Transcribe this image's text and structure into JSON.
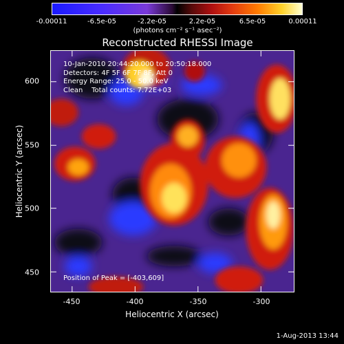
{
  "colorbar": {
    "ticks": [
      "-0.00011",
      "-6.5e-05",
      "-2.2e-05",
      "2.2e-05",
      "6.5e-05",
      "0.00011"
    ],
    "units": "(photons cm⁻² s⁻¹ asec⁻²)"
  },
  "plot": {
    "title": "Reconstructed RHESSI Image",
    "header": [
      "10-Jan-2010 20:44:20.000 to 20:50:18.000",
      "Detectors: 4F 5F 6F 7F 8F, Att 0",
      "Energy Range: 25.0 - 50.0 keV",
      "Clean    Total counts: 7.72E+03"
    ],
    "peak": "Position of Peak = [-403,609]"
  },
  "axes": {
    "xlabel": "Heliocentric X (arcsec)",
    "ylabel": "Heliocentric Y (arcsec)",
    "xlim": [
      -470,
      -277
    ],
    "ylim": [
      432,
      624
    ],
    "x_ticks": [
      "-450",
      "-400",
      "-350",
      "-300"
    ],
    "y_ticks": [
      "450",
      "500",
      "550",
      "600"
    ]
  },
  "timestamp": "1-Aug-2013 13:44"
}
